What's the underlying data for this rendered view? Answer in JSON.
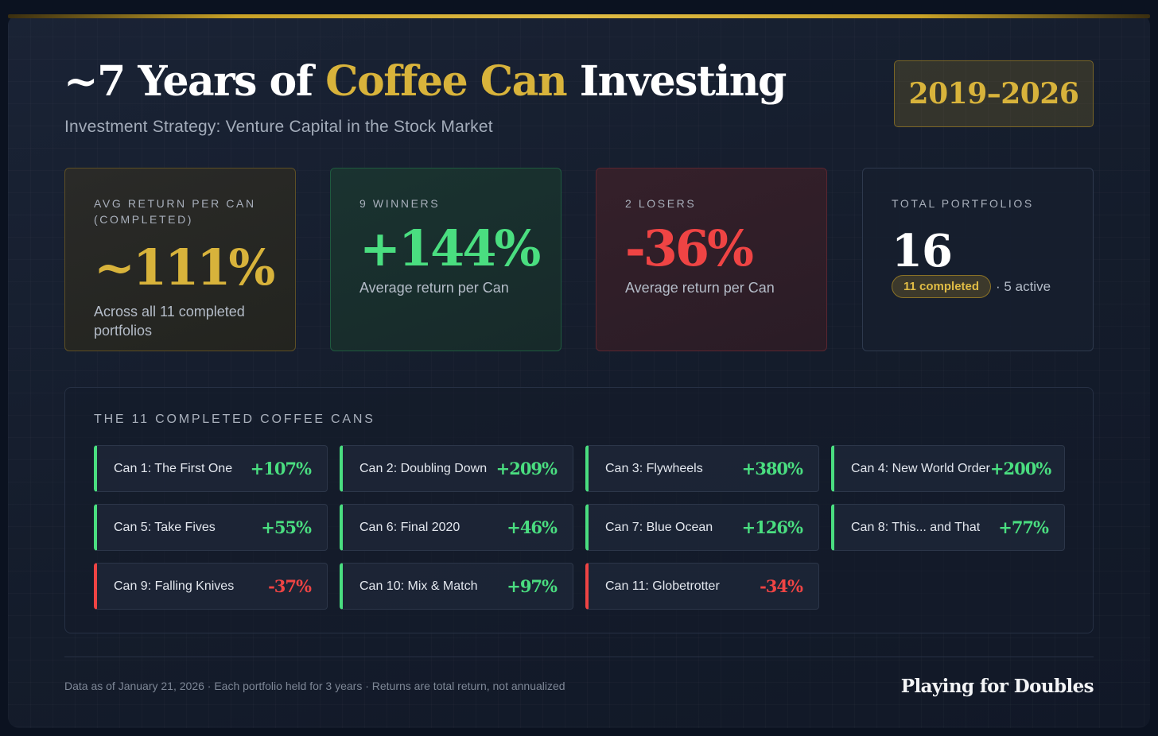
{
  "header": {
    "title_pre": "~7 Years of ",
    "title_highlight": "Coffee Can",
    "title_post": " Investing",
    "subtitle": "Investment Strategy: Venture Capital in the Stock Market",
    "year_range": "2019–2026"
  },
  "stats": {
    "avg": {
      "label": "AVG RETURN PER CAN (COMPLETED)",
      "value": "~111%",
      "note": "Across all 11 completed portfolios"
    },
    "winners": {
      "label": "9 WINNERS",
      "value": "+144%",
      "note": "Average return per Can"
    },
    "losers": {
      "label": "2 LOSERS",
      "value": "-36%",
      "note": "Average return per Can"
    },
    "total": {
      "label": "TOTAL PORTFOLIOS",
      "value": "16",
      "completed_badge": "11 completed",
      "active_text": "· 5 active"
    }
  },
  "cans_section": {
    "label": "THE 11 COMPLETED COFFEE CANS",
    "cans": [
      {
        "name": "Can 1: The First One",
        "return": "+107%",
        "direction": "positive"
      },
      {
        "name": "Can 2: Doubling Down",
        "return": "+209%",
        "direction": "positive"
      },
      {
        "name": "Can 3: Flywheels",
        "return": "+380%",
        "direction": "positive"
      },
      {
        "name": "Can 4: New World Order",
        "return": "+200%",
        "direction": "positive"
      },
      {
        "name": "Can 5: Take Fives",
        "return": "+55%",
        "direction": "positive"
      },
      {
        "name": "Can 6: Final 2020",
        "return": "+46%",
        "direction": "positive"
      },
      {
        "name": "Can 7: Blue Ocean",
        "return": "+126%",
        "direction": "positive"
      },
      {
        "name": "Can 8: This... and That",
        "return": "+77%",
        "direction": "positive"
      },
      {
        "name": "Can 9: Falling Knives",
        "return": "-37%",
        "direction": "negative"
      },
      {
        "name": "Can 10: Mix & Match",
        "return": "+97%",
        "direction": "positive"
      },
      {
        "name": "Can 11: Globetrotter",
        "return": "-34%",
        "direction": "negative"
      }
    ]
  },
  "footer": {
    "note": "Data as of January 21, 2026 · Each portfolio held for 3 years · Returns are total return, not annualized",
    "brand": "Playing for Doubles"
  },
  "colors": {
    "accent_gold": "#d8b33b",
    "positive": "#4ade80",
    "negative": "#ef4444",
    "background": "#141c2b"
  }
}
